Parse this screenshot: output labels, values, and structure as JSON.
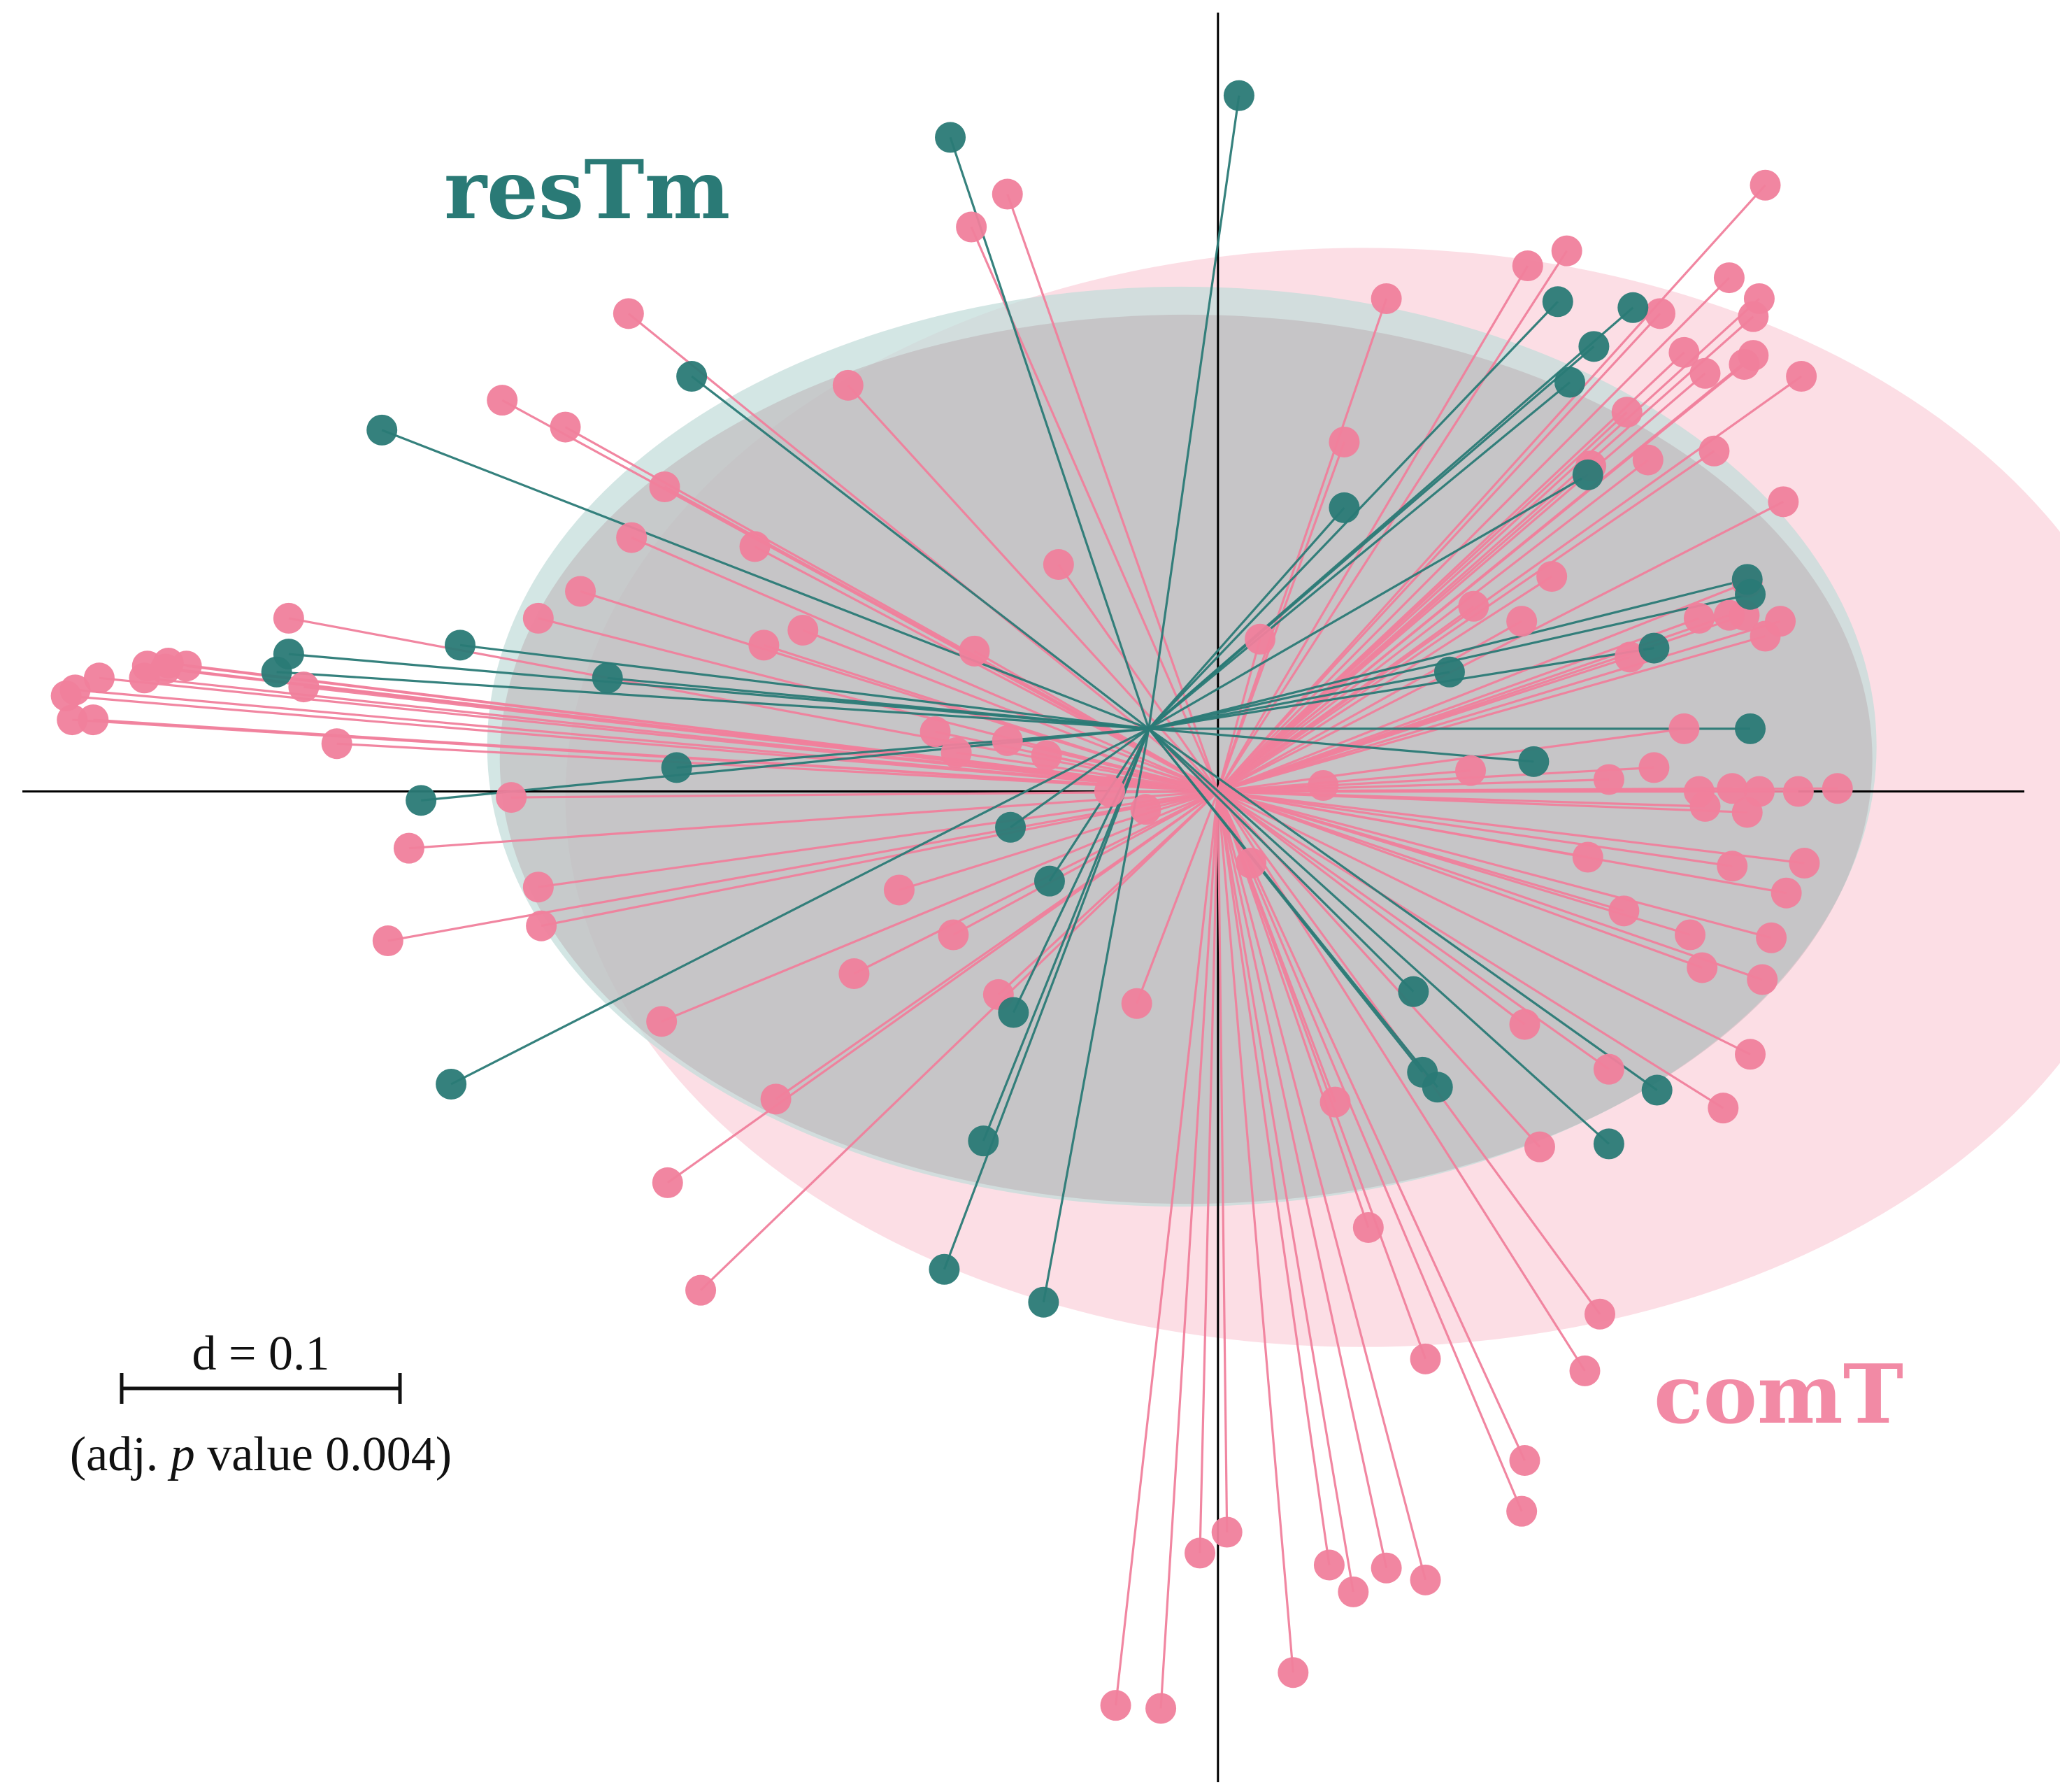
{
  "chart_data": {
    "type": "scatter",
    "title": "",
    "xlabel": "",
    "ylabel": "",
    "grid": false,
    "legend": "none",
    "scale_bar": {
      "label": "d = 0.1",
      "note_prefix": "(adj. ",
      "note_italic": "p",
      "note_suffix": " value 0.004)"
    },
    "xlim": [
      -0.405,
      0.28
    ],
    "ylim": [
      -0.335,
      0.265
    ],
    "groups": [
      {
        "name": "resTm",
        "color": "#2a7a76",
        "fill": "#c2dcd9",
        "centroid": [
          -0.023,
          0.021
        ],
        "ellipse": {
          "cx": -0.012,
          "cy": 0.015,
          "rx": 0.231,
          "ry": 0.154
        },
        "points": [
          [
            0.007,
            0.233
          ],
          [
            -0.089,
            0.219
          ],
          [
            -0.175,
            0.139
          ],
          [
            -0.278,
            0.121
          ],
          [
            -0.309,
            0.046
          ],
          [
            -0.313,
            0.04
          ],
          [
            -0.252,
            0.049
          ],
          [
            -0.203,
            0.038
          ],
          [
            -0.18,
            0.008
          ],
          [
            -0.265,
            -0.003
          ],
          [
            -0.069,
            -0.012
          ],
          [
            -0.056,
            -0.03
          ],
          [
            -0.255,
            -0.098
          ],
          [
            -0.068,
            -0.074
          ],
          [
            -0.078,
            -0.117
          ],
          [
            -0.091,
            -0.16
          ],
          [
            -0.058,
            -0.171
          ],
          [
            0.113,
            0.164
          ],
          [
            0.138,
            0.162
          ],
          [
            0.125,
            0.149
          ],
          [
            0.117,
            0.137
          ],
          [
            0.123,
            0.106
          ],
          [
            0.042,
            0.095
          ],
          [
            0.176,
            0.071
          ],
          [
            0.177,
            0.066
          ],
          [
            0.145,
            0.048
          ],
          [
            0.077,
            0.04
          ],
          [
            0.177,
            0.021
          ],
          [
            0.105,
            0.01
          ],
          [
            0.065,
            -0.067
          ],
          [
            0.068,
            -0.094
          ],
          [
            0.073,
            -0.099
          ],
          [
            0.146,
            -0.1
          ],
          [
            0.13,
            -0.118
          ]
        ]
      },
      {
        "name": "comT",
        "color": "#f07f9c",
        "fill": "#fbd6de",
        "centroid": [
          0.0,
          0.0
        ],
        "ellipse": {
          "cx": 0.048,
          "cy": -0.002,
          "rx": 0.265,
          "ry": 0.184
        },
        "points": [
          [
            0.182,
            0.203
          ],
          [
            0.116,
            0.181
          ],
          [
            0.103,
            0.176
          ],
          [
            0.17,
            0.172
          ],
          [
            0.056,
            0.165
          ],
          [
            0.147,
            0.16
          ],
          [
            0.18,
            0.165
          ],
          [
            0.178,
            0.159
          ],
          [
            0.155,
            0.147
          ],
          [
            0.178,
            0.146
          ],
          [
            0.175,
            0.143
          ],
          [
            0.194,
            0.139
          ],
          [
            0.162,
            0.14
          ],
          [
            0.136,
            0.127
          ],
          [
            0.042,
            0.117
          ],
          [
            0.165,
            0.114
          ],
          [
            0.143,
            0.111
          ],
          [
            0.124,
            0.109
          ],
          [
            0.188,
            0.097
          ],
          [
            0.111,
            0.072
          ],
          [
            0.176,
            0.07
          ],
          [
            0.085,
            0.062
          ],
          [
            0.175,
            0.059
          ],
          [
            0.101,
            0.057
          ],
          [
            0.014,
            0.051
          ],
          [
            0.16,
            0.058
          ],
          [
            0.182,
            0.052
          ],
          [
            0.187,
            0.057
          ],
          [
            0.17,
            0.059
          ],
          [
            0.137,
            0.045
          ],
          [
            0.155,
            0.021
          ],
          [
            0.13,
            0.004
          ],
          [
            0.145,
            0.008
          ],
          [
            0.084,
            0.007
          ],
          [
            0.035,
            0.002
          ],
          [
            0.16,
            0.0
          ],
          [
            0.162,
            -0.005
          ],
          [
            0.18,
            0.0
          ],
          [
            0.171,
            0.001
          ],
          [
            0.176,
            -0.007
          ],
          [
            0.193,
            0.0
          ],
          [
            0.206,
            0.001
          ],
          [
            0.195,
            -0.024
          ],
          [
            0.123,
            -0.022
          ],
          [
            0.171,
            -0.025
          ],
          [
            0.189,
            -0.034
          ],
          [
            0.135,
            -0.04
          ],
          [
            0.157,
            -0.048
          ],
          [
            0.184,
            -0.049
          ],
          [
            0.161,
            -0.059
          ],
          [
            0.181,
            -0.063
          ],
          [
            0.177,
            -0.088
          ],
          [
            0.13,
            -0.093
          ],
          [
            0.168,
            -0.106
          ],
          [
            0.102,
            -0.078
          ],
          [
            0.039,
            -0.104
          ],
          [
            0.107,
            -0.119
          ],
          [
            0.05,
            -0.146
          ],
          [
            0.127,
            -0.175
          ],
          [
            0.069,
            -0.19
          ],
          [
            0.122,
            -0.194
          ],
          [
            0.102,
            -0.224
          ],
          [
            0.101,
            -0.241
          ],
          [
            0.003,
            -0.248
          ],
          [
            -0.006,
            -0.255
          ],
          [
            0.037,
            -0.259
          ],
          [
            0.056,
            -0.26
          ],
          [
            0.069,
            -0.264
          ],
          [
            0.045,
            -0.268
          ],
          [
            0.025,
            -0.295
          ],
          [
            -0.034,
            -0.306
          ],
          [
            -0.019,
            -0.307
          ],
          [
            0.011,
            -0.024
          ],
          [
            -0.027,
            -0.071
          ],
          [
            -0.073,
            -0.068
          ],
          [
            -0.147,
            -0.103
          ],
          [
            -0.183,
            -0.131
          ],
          [
            -0.172,
            -0.167
          ],
          [
            -0.106,
            -0.033
          ],
          [
            -0.088,
            -0.048
          ],
          [
            -0.121,
            -0.061
          ],
          [
            -0.185,
            -0.077
          ],
          [
            -0.225,
            -0.045
          ],
          [
            -0.276,
            -0.05
          ],
          [
            -0.226,
            -0.032
          ],
          [
            -0.269,
            -0.019
          ],
          [
            -0.235,
            -0.002
          ],
          [
            -0.293,
            0.016
          ],
          [
            -0.374,
            0.024
          ],
          [
            -0.381,
            0.024
          ],
          [
            -0.383,
            0.032
          ],
          [
            -0.38,
            0.034
          ],
          [
            -0.372,
            0.038
          ],
          [
            -0.357,
            0.038
          ],
          [
            -0.356,
            0.042
          ],
          [
            -0.35,
            0.041
          ],
          [
            -0.349,
            0.043
          ],
          [
            -0.343,
            0.042
          ],
          [
            -0.304,
            0.035
          ],
          [
            -0.309,
            0.058
          ],
          [
            -0.226,
            0.058
          ],
          [
            -0.151,
            0.049
          ],
          [
            -0.138,
            0.054
          ],
          [
            -0.081,
            0.047
          ],
          [
            -0.094,
            0.02
          ],
          [
            -0.212,
            0.067
          ],
          [
            -0.195,
            0.085
          ],
          [
            -0.184,
            0.102
          ],
          [
            -0.217,
            0.122
          ],
          [
            -0.238,
            0.131
          ],
          [
            -0.196,
            0.16
          ],
          [
            -0.123,
            0.136
          ],
          [
            -0.07,
            0.2
          ],
          [
            -0.082,
            0.189
          ],
          [
            -0.07,
            0.017
          ],
          [
            -0.053,
            0.076
          ],
          [
            -0.154,
            0.082
          ],
          [
            -0.087,
            0.013
          ],
          [
            -0.057,
            0.012
          ],
          [
            -0.036,
            0.0
          ],
          [
            -0.024,
            -0.006
          ]
        ]
      }
    ]
  },
  "labels": {
    "group_a": "resTm",
    "group_b": "comT"
  }
}
